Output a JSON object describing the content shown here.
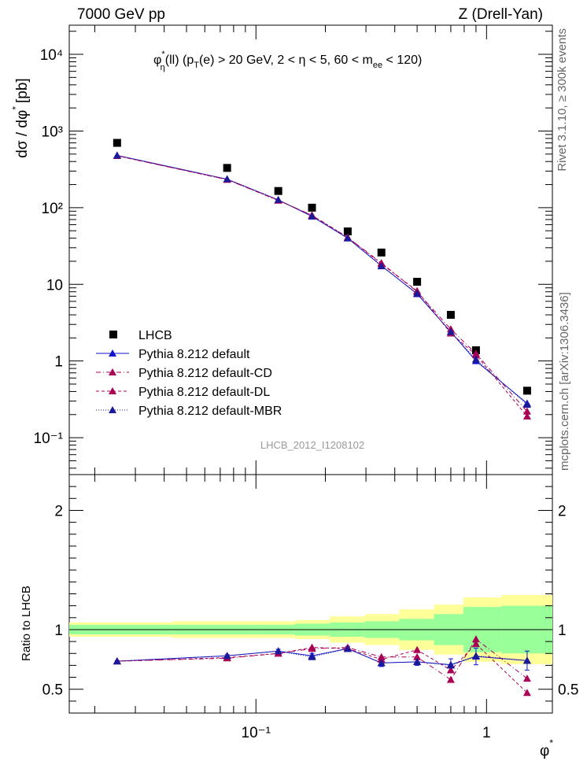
{
  "header": {
    "left": "7000 GeV pp",
    "right": "Z (Drell-Yan)"
  },
  "side_labels": {
    "rivet": "Rivet 3.1.10, ≥ 300k events",
    "mcplots": "mcplots.cern.ch [arXiv:1306.3436]"
  },
  "chart_data": {
    "type": "scatter",
    "title_parts": {
      "phi": "φ",
      "sup": "*",
      "sub": "η",
      "rest": "(ll) (p",
      "sub2": "T",
      "rest2": "(e) > 20 GeV, 2 < η < 5, 60 < m",
      "sub3": "ee",
      "rest3": " < 120)"
    },
    "analysis_label": "LHCB_2012_I1208102",
    "xlabel": "φ",
    "xlabel_sup": "*",
    "ylabel": "dσ / dφ",
    "ylabel_sup": "*",
    "ylabel_unit": "[pb]",
    "ratio_ylabel": "Ratio to LHCB",
    "x_scale": "log",
    "xlim": [
      0.0155,
      1.93
    ],
    "ylim_main": [
      0.033,
      24000
    ],
    "ylim_ratio": [
      0.3,
      2.3
    ],
    "y_scale_main": "log",
    "x_tick_labels": [
      "10⁻¹",
      "1"
    ],
    "y_tick_labels_main": [
      "10⁻¹",
      "1",
      "10",
      "10²",
      "10³",
      "10⁴"
    ],
    "y_tick_labels_ratio": [
      "0.5",
      "1",
      "2"
    ],
    "legend_position": "bottom-left",
    "x": [
      0.025,
      0.075,
      0.125,
      0.175,
      0.25,
      0.35,
      0.5,
      0.7,
      0.9,
      1.5
    ],
    "series": [
      {
        "name": "LHCB",
        "color": "#000000",
        "marker": "square",
        "values": [
          700,
          330,
          165,
          100,
          49,
          26,
          10.8,
          4.0,
          1.38,
          0.41
        ],
        "ratio": [
          1,
          1,
          1,
          1,
          1,
          1,
          1,
          1,
          1,
          1
        ],
        "band_inner": [
          0.04,
          0.04,
          0.04,
          0.05,
          0.06,
          0.07,
          0.09,
          0.13,
          0.19,
          0.2
        ],
        "band_outer": [
          0.06,
          0.07,
          0.07,
          0.08,
          0.11,
          0.13,
          0.17,
          0.21,
          0.27,
          0.29
        ]
      },
      {
        "name": "Pythia 8.212 default",
        "color": "#1212cc",
        "style": "solid",
        "values": [
          480,
          235,
          126,
          77,
          40,
          17.5,
          7.5,
          2.4,
          1.0,
          0.28
        ],
        "ratio": [
          0.735,
          0.78,
          0.82,
          0.78,
          0.84,
          0.72,
          0.73,
          0.705,
          0.775,
          0.74
        ],
        "err": [
          0.005,
          0.01,
          0.015,
          0.02,
          0.02,
          0.03,
          0.03,
          0.05,
          0.07,
          0.08
        ]
      },
      {
        "name": "Pythia 8.212 default-CD",
        "color": "#aa0055",
        "style": "dashdot",
        "values": [
          475,
          232,
          124,
          80,
          41,
          19,
          8.0,
          2.6,
          1.25,
          0.22
        ],
        "ratio": [
          0.735,
          0.76,
          0.8,
          0.84,
          0.85,
          0.77,
          0.77,
          0.58,
          0.92,
          0.59
        ]
      },
      {
        "name": "Pythia 8.212 default-DL",
        "color": "#aa0055",
        "style": "dashed",
        "values": [
          475,
          233,
          125,
          79,
          41,
          18.5,
          8.2,
          2.3,
          1.2,
          0.19
        ],
        "ratio": [
          0.735,
          0.765,
          0.8,
          0.85,
          0.84,
          0.75,
          0.83,
          0.66,
          0.88,
          0.47
        ]
      },
      {
        "name": "Pythia 8.212 default-MBR",
        "color": "#1a1a9a",
        "style": "dotted",
        "values": [
          480,
          236,
          127,
          77,
          40,
          17.3,
          7.6,
          2.4,
          1.05,
          0.27
        ],
        "ratio": [
          0.735,
          0.78,
          0.82,
          0.77,
          0.84,
          0.72,
          0.73,
          0.7,
          0.78,
          0.74
        ]
      }
    ]
  }
}
